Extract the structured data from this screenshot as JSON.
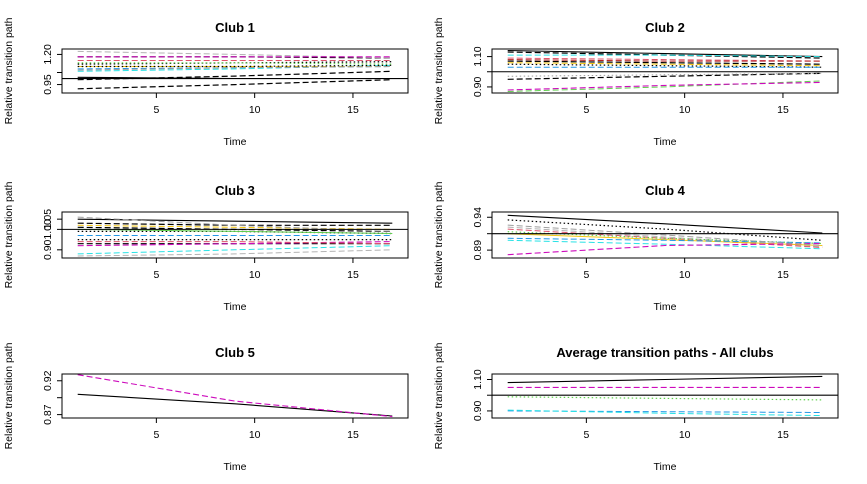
{
  "panels": [
    {
      "title": "Club 1",
      "xlabel": "Time",
      "ylabel": "Relative transition path",
      "xlim": [
        0.2,
        17.8
      ],
      "ylim": [
        0.88,
        1.245
      ],
      "xticks": [
        5,
        10,
        15
      ],
      "yticks": [
        0.95,
        1.05,
        1.2
      ],
      "ytick_labels": [
        "0.95",
        "",
        "1.20"
      ],
      "ref_line": 1.0,
      "series": [
        {
          "color": "#000000",
          "dash": "solid",
          "width": 1.1,
          "values": [
            1.01,
            1.0,
            1.0
          ]
        },
        {
          "color": "#000000",
          "dash": "dashed",
          "width": 1.2,
          "values": [
            0.915,
            0.95,
            0.99
          ]
        },
        {
          "color": "#000000",
          "dash": "dashed",
          "width": 1.2,
          "values": [
            0.99,
            1.02,
            1.06
          ]
        },
        {
          "color": "#000000",
          "dash": "dotted",
          "width": 1.3,
          "values": [
            1.12,
            1.13,
            1.14
          ]
        },
        {
          "color": "#000000",
          "dash": "dashed",
          "width": 1.2,
          "values": [
            1.18,
            1.18,
            1.17
          ]
        },
        {
          "color": "#B3B3B3",
          "dash": "dashed",
          "width": 1.0,
          "values": [
            1.225,
            1.2,
            1.17
          ]
        },
        {
          "color": "#CD0BBC",
          "dash": "dashed",
          "width": 1.1,
          "values": [
            1.18,
            1.18,
            1.18
          ]
        },
        {
          "color": "#DF536B",
          "dash": "dashed",
          "width": 1.0,
          "values": [
            1.15,
            1.15,
            1.15
          ]
        },
        {
          "color": "#61D04F",
          "dash": "dotted",
          "width": 1.2,
          "values": [
            1.13,
            1.13,
            1.12
          ]
        },
        {
          "color": "#28E2E5",
          "dash": "dashed",
          "width": 1.0,
          "values": [
            1.06,
            1.08,
            1.11
          ]
        },
        {
          "color": "#2297E6",
          "dash": "dashed",
          "width": 1.0,
          "values": [
            1.08,
            1.09,
            1.1
          ]
        },
        {
          "color": "#F5C710",
          "dash": "dashed",
          "width": 1.0,
          "values": [
            1.1,
            1.1,
            1.1
          ]
        },
        {
          "color": "#9E9E9E",
          "dash": "dashed",
          "width": 1.0,
          "values": [
            1.07,
            1.09,
            1.1
          ]
        },
        {
          "color": "#000000",
          "dash": "dotted",
          "width": 1.2,
          "values": [
            1.1,
            1.1,
            1.11
          ]
        }
      ]
    },
    {
      "title": "Club 2",
      "xlabel": "Time",
      "ylabel": "Relative transition path",
      "xlim": [
        0.2,
        17.8
      ],
      "ylim": [
        0.86,
        1.15
      ],
      "xticks": [
        5,
        10,
        15
      ],
      "yticks": [
        0.9,
        1.0,
        1.1
      ],
      "ytick_labels": [
        "0.90",
        "",
        "1.10"
      ],
      "ref_line": 1.0,
      "series": [
        {
          "color": "#000000",
          "dash": "solid",
          "width": 1.1,
          "values": [
            1.14,
            1.12,
            1.1
          ]
        },
        {
          "color": "#000000",
          "dash": "dashed",
          "width": 1.2,
          "values": [
            1.13,
            1.11,
            1.09
          ]
        },
        {
          "color": "#000000",
          "dash": "dashed",
          "width": 1.2,
          "values": [
            1.07,
            1.06,
            1.05
          ]
        },
        {
          "color": "#000000",
          "dash": "dotted",
          "width": 1.2,
          "values": [
            1.05,
            1.04,
            1.03
          ]
        },
        {
          "color": "#000000",
          "dash": "dashed",
          "width": 1.2,
          "values": [
            0.95,
            0.97,
            0.99
          ]
        },
        {
          "color": "#DF536B",
          "dash": "dashed",
          "width": 1.0,
          "values": [
            1.09,
            1.08,
            1.07
          ]
        },
        {
          "color": "#61D04F",
          "dash": "dashed",
          "width": 1.0,
          "values": [
            0.87,
            0.9,
            0.94
          ]
        },
        {
          "color": "#2297E6",
          "dash": "dashed",
          "width": 1.0,
          "values": [
            1.03,
            1.03,
            1.03
          ]
        },
        {
          "color": "#28E2E5",
          "dash": "dashed",
          "width": 1.0,
          "values": [
            1.11,
            1.11,
            1.1
          ]
        },
        {
          "color": "#CD0BBC",
          "dash": "dashed",
          "width": 1.1,
          "values": [
            0.88,
            0.91,
            0.93
          ]
        },
        {
          "color": "#F5C710",
          "dash": "dashed",
          "width": 1.0,
          "values": [
            1.06,
            1.05,
            1.04
          ]
        },
        {
          "color": "#9E9E9E",
          "dash": "dotted",
          "width": 1.0,
          "values": [
            0.97,
            0.98,
            0.99
          ]
        },
        {
          "color": "#B22222",
          "dash": "dashed",
          "width": 1.0,
          "values": [
            1.08,
            1.07,
            1.07
          ]
        }
      ]
    },
    {
      "title": "Club 3",
      "xlabel": "Time",
      "ylabel": "Relative transition path",
      "xlim": [
        0.2,
        17.8
      ],
      "ylim": [
        0.86,
        1.085
      ],
      "xticks": [
        5,
        10,
        15
      ],
      "yticks": [
        0.9,
        1.0,
        1.05
      ],
      "ytick_labels": [
        "0.90",
        "1.00",
        "1.05"
      ],
      "ref_line": 1.0,
      "series": [
        {
          "color": "#000000",
          "dash": "solid",
          "width": 1.1,
          "values": [
            1.05,
            1.04,
            1.03
          ]
        },
        {
          "color": "#000000",
          "dash": "dashed",
          "width": 1.2,
          "values": [
            1.03,
            1.02,
            1.02
          ]
        },
        {
          "color": "#000000",
          "dash": "dashed",
          "width": 1.2,
          "values": [
            1.01,
            1.0,
            0.99
          ]
        },
        {
          "color": "#000000",
          "dash": "dotted",
          "width": 1.3,
          "values": [
            0.99,
            0.99,
            0.98
          ]
        },
        {
          "color": "#000000",
          "dash": "dashed",
          "width": 1.2,
          "values": [
            0.93,
            0.93,
            0.93
          ]
        },
        {
          "color": "#000000",
          "dash": "dotted",
          "width": 1.3,
          "values": [
            0.95,
            0.95,
            0.95
          ]
        },
        {
          "color": "#CD0BBC",
          "dash": "dashed",
          "width": 1.1,
          "values": [
            0.92,
            0.93,
            0.94
          ]
        },
        {
          "color": "#DF536B",
          "dash": "dashed",
          "width": 1.0,
          "values": [
            0.94,
            0.94,
            0.93
          ]
        },
        {
          "color": "#61D04F",
          "dash": "solid",
          "width": 1.0,
          "values": [
            1.0,
            0.99,
            0.98
          ]
        },
        {
          "color": "#28E2E5",
          "dash": "dashed",
          "width": 1.0,
          "values": [
            0.88,
            0.9,
            0.92
          ]
        },
        {
          "color": "#2297E6",
          "dash": "dashed",
          "width": 1.0,
          "values": [
            0.97,
            0.97,
            0.97
          ]
        },
        {
          "color": "#F5C710",
          "dash": "dashed",
          "width": 1.0,
          "values": [
            1.02,
            1.01,
            1.0
          ]
        },
        {
          "color": "#9E9E9E",
          "dash": "dashed",
          "width": 1.0,
          "values": [
            1.06,
            1.02,
            0.99
          ]
        },
        {
          "color": "#B3B3B3",
          "dash": "dashed",
          "width": 1.0,
          "values": [
            0.87,
            0.88,
            0.9
          ]
        }
      ]
    },
    {
      "title": "Club 4",
      "xlabel": "Time",
      "ylabel": "Relative transition path",
      "xlim": [
        0.2,
        17.8
      ],
      "ylim": [
        0.878,
        0.948
      ],
      "xticks": [
        5,
        10,
        15
      ],
      "yticks": [
        0.89,
        0.915,
        0.94
      ],
      "ytick_labels": [
        "0.89",
        "",
        "0.94"
      ],
      "ref_line": 0.915,
      "series": [
        {
          "color": "#000000",
          "dash": "solid",
          "width": 1.1,
          "values": [
            0.943,
            0.93,
            0.916
          ]
        },
        {
          "color": "#000000",
          "dash": "dotted",
          "width": 1.2,
          "values": [
            0.936,
            0.922,
            0.905
          ]
        },
        {
          "color": "#B3B3B3",
          "dash": "dashed",
          "width": 1.0,
          "values": [
            0.925,
            0.91,
            0.895
          ]
        },
        {
          "color": "#DF536B",
          "dash": "dashed",
          "width": 1.0,
          "values": [
            0.922,
            0.908,
            0.894
          ]
        },
        {
          "color": "#61D04F",
          "dash": "dotted",
          "width": 1.2,
          "values": [
            0.918,
            0.908,
            0.9
          ]
        },
        {
          "color": "#F5C710",
          "dash": "solid",
          "width": 1.0,
          "values": [
            0.915,
            0.906,
            0.897
          ]
        },
        {
          "color": "#2297E6",
          "dash": "dashed",
          "width": 1.0,
          "values": [
            0.908,
            0.905,
            0.901
          ]
        },
        {
          "color": "#28E2E5",
          "dash": "dashed",
          "width": 1.0,
          "values": [
            0.905,
            0.899,
            0.892
          ]
        },
        {
          "color": "#CD0BBC",
          "dash": "dashed",
          "width": 1.1,
          "values": [
            0.883,
            0.897,
            0.9
          ]
        },
        {
          "color": "#9E9E9E",
          "dash": "dashed",
          "width": 1.0,
          "values": [
            0.928,
            0.913,
            0.897
          ]
        }
      ]
    },
    {
      "title": "Club 5",
      "xlabel": "Time",
      "ylabel": "Relative transition path",
      "xlim": [
        0.2,
        17.8
      ],
      "ylim": [
        0.865,
        0.93
      ],
      "xticks": [
        5,
        10,
        15
      ],
      "yticks": [
        0.87,
        0.895,
        0.92
      ],
      "ytick_labels": [
        "0.87",
        "",
        "0.92"
      ],
      "ref_line": null,
      "series": [
        {
          "color": "#000000",
          "dash": "solid",
          "width": 1.1,
          "values": [
            0.9,
            0.886,
            0.868
          ]
        },
        {
          "color": "#CD0BBC",
          "dash": "dashed",
          "width": 1.1,
          "values": [
            0.929,
            0.89,
            0.867
          ]
        }
      ]
    },
    {
      "title": "Average transition paths - All clubs",
      "xlabel": "Time",
      "ylabel": "Relative transition path",
      "xlim": [
        0.2,
        17.8
      ],
      "ylim": [
        0.855,
        1.135
      ],
      "xticks": [
        5,
        10,
        15
      ],
      "yticks": [
        0.9,
        1.0,
        1.1
      ],
      "ytick_labels": [
        "0.90",
        "",
        "1.10"
      ],
      "ref_line": 1.0,
      "series": [
        {
          "color": "#000000",
          "dash": "solid",
          "width": 1.1,
          "values": [
            1.08,
            1.1,
            1.12
          ]
        },
        {
          "color": "#CD0BBC",
          "dash": "dashed",
          "width": 1.1,
          "values": [
            1.05,
            1.05,
            1.05
          ]
        },
        {
          "color": "#61D04F",
          "dash": "dotted",
          "width": 1.2,
          "values": [
            0.99,
            0.98,
            0.97
          ]
        },
        {
          "color": "#2297E6",
          "dash": "dashed",
          "width": 1.0,
          "values": [
            0.9,
            0.895,
            0.89
          ]
        },
        {
          "color": "#28E2E5",
          "dash": "dashed",
          "width": 1.0,
          "values": [
            0.905,
            0.885,
            0.87
          ]
        }
      ]
    }
  ],
  "chart_data": [
    {
      "type": "line",
      "title": "Club 1",
      "xlabel": "Time",
      "ylabel": "Relative transition path",
      "x": [
        1,
        9,
        17
      ],
      "xlim": [
        0.2,
        17.8
      ],
      "ylim": [
        0.88,
        1.245
      ]
    },
    {
      "type": "line",
      "title": "Club 2",
      "xlabel": "Time",
      "ylabel": "Relative transition path",
      "x": [
        1,
        9,
        17
      ],
      "xlim": [
        0.2,
        17.8
      ],
      "ylim": [
        0.86,
        1.15
      ]
    },
    {
      "type": "line",
      "title": "Club 3",
      "xlabel": "Time",
      "ylabel": "Relative transition path",
      "x": [
        1,
        9,
        17
      ],
      "xlim": [
        0.2,
        17.8
      ],
      "ylim": [
        0.86,
        1.085
      ]
    },
    {
      "type": "line",
      "title": "Club 4",
      "xlabel": "Time",
      "ylabel": "Relative transition path",
      "x": [
        1,
        9,
        17
      ],
      "xlim": [
        0.2,
        17.8
      ],
      "ylim": [
        0.878,
        0.948
      ]
    },
    {
      "type": "line",
      "title": "Club 5",
      "xlabel": "Time",
      "ylabel": "Relative transition path",
      "x": [
        1,
        9,
        17
      ],
      "xlim": [
        0.2,
        17.8
      ],
      "ylim": [
        0.865,
        0.93
      ]
    },
    {
      "type": "line",
      "title": "Average transition paths - All clubs",
      "xlabel": "Time",
      "ylabel": "Relative transition path",
      "x": [
        1,
        9,
        17
      ],
      "xlim": [
        0.2,
        17.8
      ],
      "ylim": [
        0.855,
        1.135
      ]
    }
  ],
  "x_values": [
    1,
    9,
    17
  ]
}
